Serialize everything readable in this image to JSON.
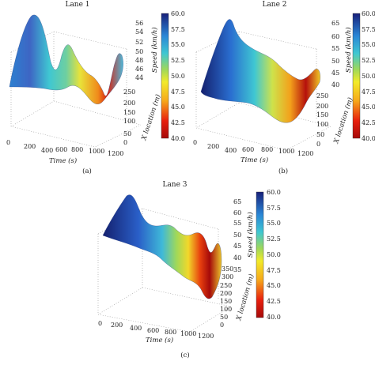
{
  "chart_data": [
    {
      "type": "surface",
      "title": "Lane 1",
      "caption": "(a)",
      "xlabel": "Time (s)",
      "ylabel": "X location (m)",
      "zlabel": "Speed (km/h)",
      "x_ticks": [
        "0",
        "200",
        "400",
        "600",
        "800",
        "1000",
        "1200"
      ],
      "y_ticks": [
        "0",
        "50",
        "100",
        "150",
        "200",
        "250"
      ],
      "z_ticks": [
        "44",
        "46",
        "48",
        "50",
        "52",
        "54",
        "56"
      ],
      "colorbar": {
        "ticks": [
          "40.0",
          "42.5",
          "45.0",
          "47.5",
          "50.0",
          "52.5",
          "55.0",
          "57.5",
          "60.0"
        ],
        "range": [
          40,
          60
        ]
      }
    },
    {
      "type": "surface",
      "title": "Lane 2",
      "caption": "(b)",
      "xlabel": "Time (s)",
      "ylabel": "X location (m)",
      "zlabel": "Speed (km/h)",
      "x_ticks": [
        "0",
        "200",
        "400",
        "600",
        "800",
        "1000",
        "1200"
      ],
      "y_ticks": [
        "0",
        "50",
        "100",
        "150",
        "200",
        "250"
      ],
      "z_ticks": [
        "40",
        "45",
        "50",
        "55",
        "60",
        "65"
      ],
      "colorbar": {
        "ticks": [
          "40.0",
          "42.5",
          "45.0",
          "47.5",
          "50.0",
          "52.5",
          "55.0",
          "57.5",
          "60.0"
        ],
        "range": [
          40,
          60
        ]
      }
    },
    {
      "type": "surface",
      "title": "Lane 3",
      "caption": "(c)",
      "xlabel": "Time (s)",
      "ylabel": "X location (m)",
      "zlabel": "Speed (km/h)",
      "x_ticks": [
        "0",
        "200",
        "400",
        "600",
        "800",
        "1000",
        "1200"
      ],
      "y_ticks": [
        "0",
        "50",
        "100",
        "150",
        "200",
        "250",
        "300",
        "350"
      ],
      "z_ticks": [
        "35",
        "40",
        "45",
        "50",
        "55",
        "60",
        "65"
      ],
      "colorbar": {
        "ticks": [
          "40.0",
          "42.5",
          "45.0",
          "47.5",
          "50.0",
          "52.5",
          "55.0",
          "57.5",
          "60.0"
        ],
        "range": [
          40,
          60
        ]
      }
    }
  ]
}
